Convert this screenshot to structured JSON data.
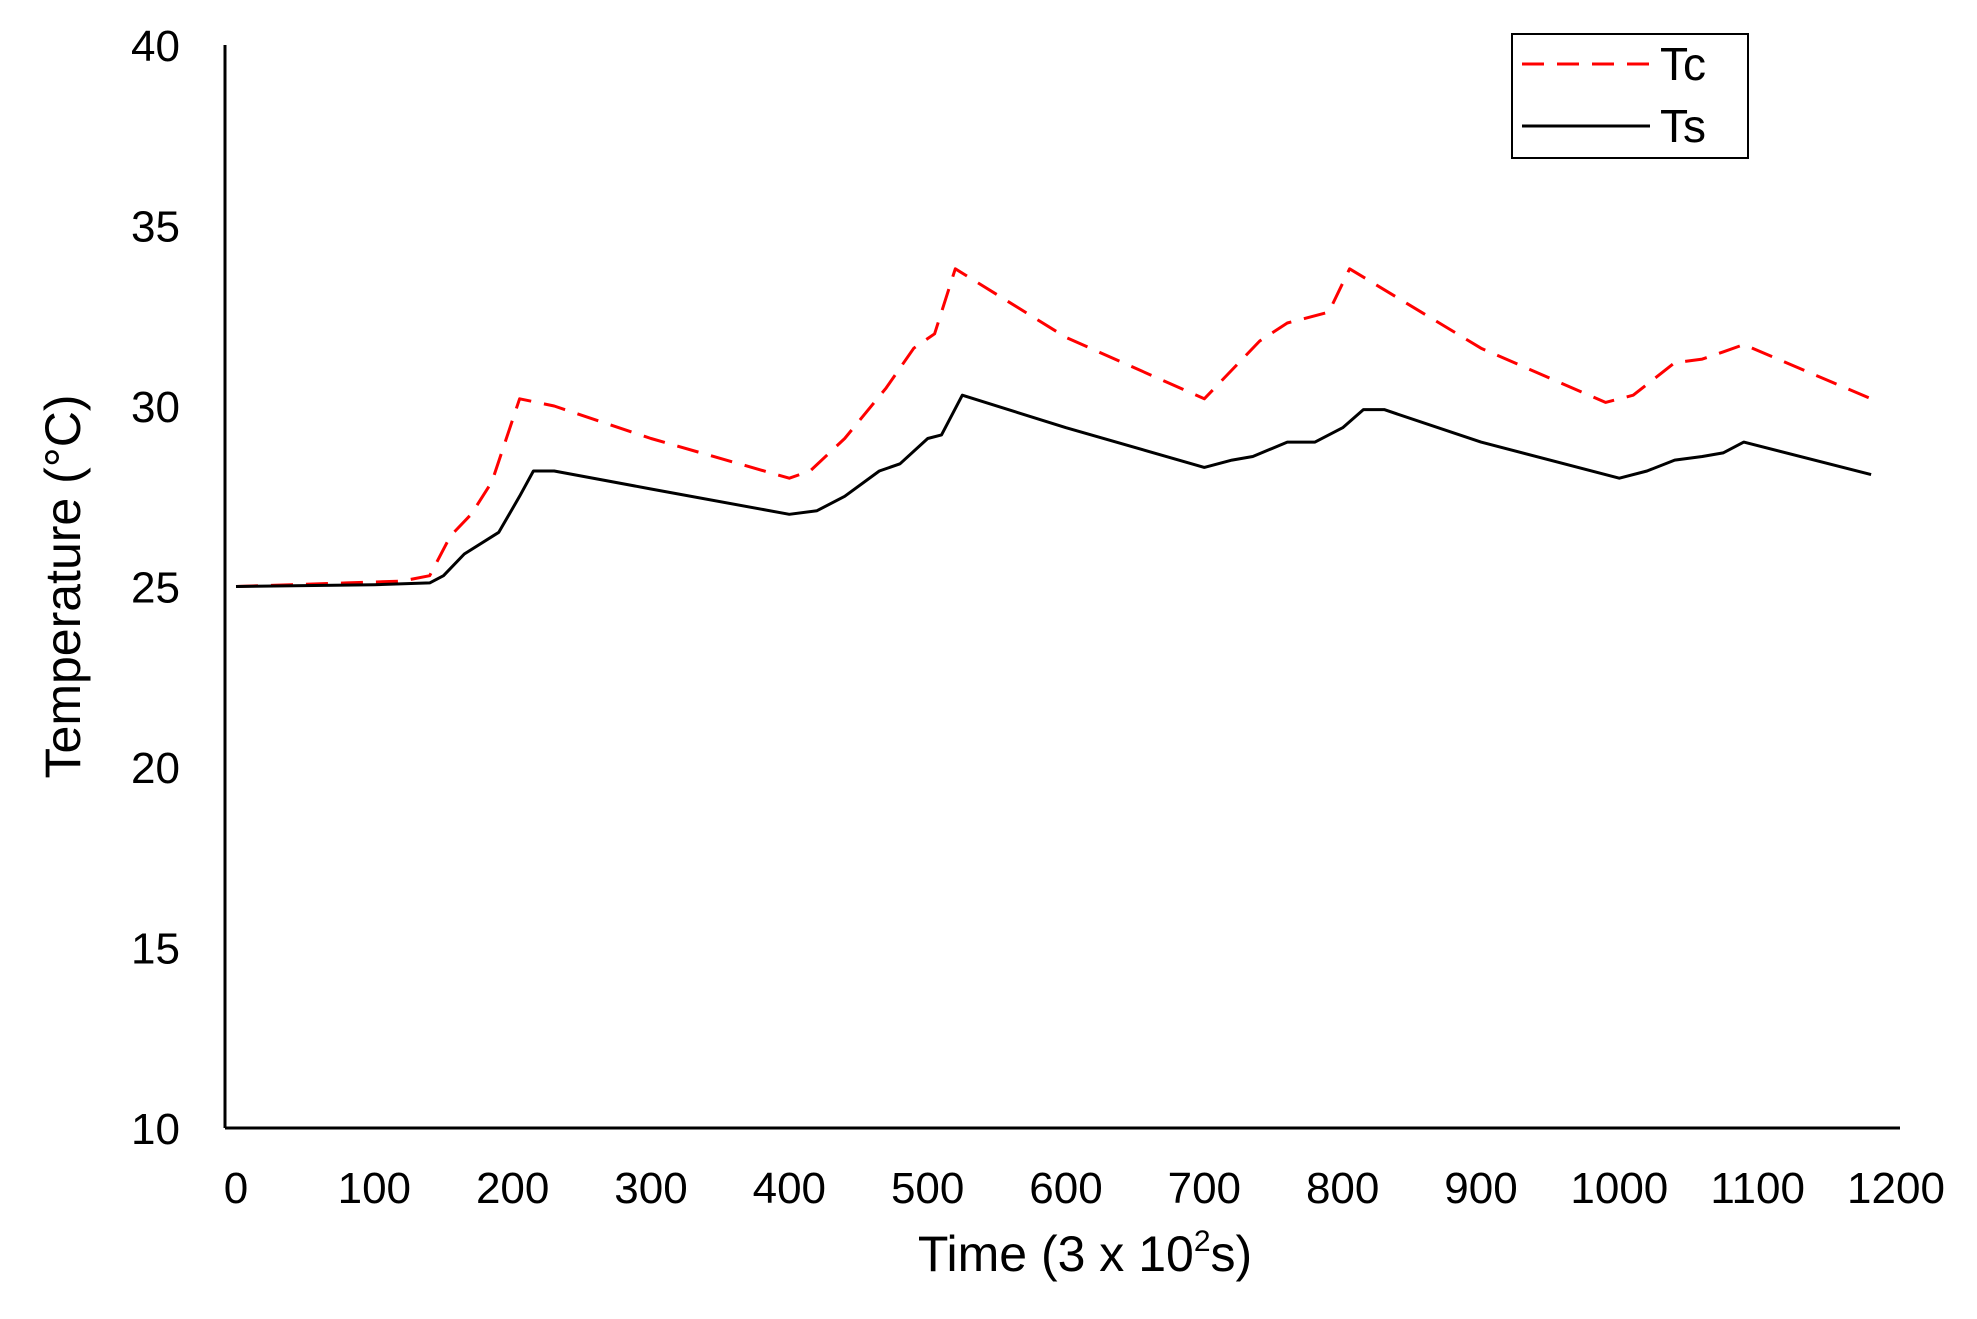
{
  "chart_data": {
    "type": "line",
    "title": "",
    "xlabel": "Time (3 x 10",
    "xlabel_sup": "2",
    "xlabel_tail": "s)",
    "ylabel": "Temperature (°C)",
    "xlim": [
      0,
      1200
    ],
    "ylim": [
      10,
      40
    ],
    "x_ticks": [
      "0",
      "100",
      "200",
      "300",
      "400",
      "500",
      "600",
      "700",
      "800",
      "900",
      "1000",
      "1100",
      "1200"
    ],
    "y_ticks": [
      "10",
      "15",
      "20",
      "25",
      "30",
      "35",
      "40"
    ],
    "grid": false,
    "legend_position": "top-right",
    "series": [
      {
        "name": "Tc",
        "color": "#ff0000",
        "style": "dashed",
        "points": [
          [
            0,
            25.0
          ],
          [
            40,
            25.05
          ],
          [
            80,
            25.1
          ],
          [
            120,
            25.15
          ],
          [
            140,
            25.3
          ],
          [
            155,
            26.4
          ],
          [
            170,
            27.0
          ],
          [
            185,
            27.9
          ],
          [
            205,
            30.2
          ],
          [
            230,
            30.0
          ],
          [
            300,
            29.1
          ],
          [
            400,
            28.0
          ],
          [
            415,
            28.2
          ],
          [
            440,
            29.1
          ],
          [
            470,
            30.5
          ],
          [
            490,
            31.6
          ],
          [
            505,
            32.0
          ],
          [
            520,
            33.8
          ],
          [
            600,
            31.9
          ],
          [
            700,
            30.2
          ],
          [
            740,
            31.8
          ],
          [
            760,
            32.3
          ],
          [
            790,
            32.6
          ],
          [
            805,
            33.8
          ],
          [
            900,
            31.6
          ],
          [
            990,
            30.1
          ],
          [
            1010,
            30.3
          ],
          [
            1040,
            31.2
          ],
          [
            1060,
            31.3
          ],
          [
            1075,
            31.5
          ],
          [
            1090,
            31.7
          ],
          [
            1182,
            30.2
          ]
        ]
      },
      {
        "name": "Ts",
        "color": "#000000",
        "style": "solid",
        "points": [
          [
            0,
            25.0
          ],
          [
            100,
            25.05
          ],
          [
            140,
            25.1
          ],
          [
            150,
            25.3
          ],
          [
            165,
            25.9
          ],
          [
            190,
            26.5
          ],
          [
            205,
            27.5
          ],
          [
            215,
            28.2
          ],
          [
            230,
            28.2
          ],
          [
            300,
            27.7
          ],
          [
            400,
            27.0
          ],
          [
            420,
            27.1
          ],
          [
            440,
            27.5
          ],
          [
            465,
            28.2
          ],
          [
            480,
            28.4
          ],
          [
            500,
            29.1
          ],
          [
            510,
            29.2
          ],
          [
            525,
            30.3
          ],
          [
            600,
            29.4
          ],
          [
            700,
            28.3
          ],
          [
            720,
            28.5
          ],
          [
            735,
            28.6
          ],
          [
            760,
            29.0
          ],
          [
            780,
            29.0
          ],
          [
            800,
            29.4
          ],
          [
            815,
            29.9
          ],
          [
            830,
            29.9
          ],
          [
            900,
            29.0
          ],
          [
            1000,
            28.0
          ],
          [
            1020,
            28.2
          ],
          [
            1040,
            28.5
          ],
          [
            1060,
            28.6
          ],
          [
            1075,
            28.7
          ],
          [
            1090,
            29.0
          ],
          [
            1182,
            28.1
          ]
        ]
      }
    ]
  }
}
